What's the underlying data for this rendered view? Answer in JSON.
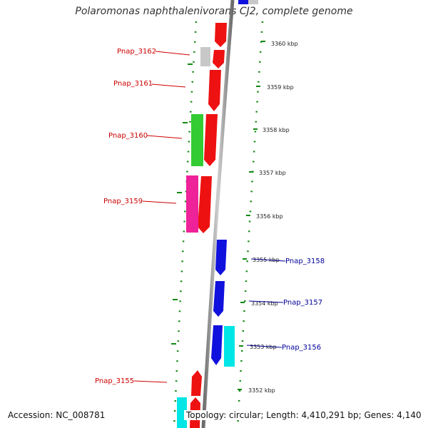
{
  "title": "Polaromonas naphthalenivorans CJ2, complete genome",
  "footer": {
    "accession": "Accession: NC_008781",
    "summary": "Topology: circular; Length: 4,410,291 bp; Genes: 4,140"
  },
  "colors": {
    "red": "#ee1111",
    "blue": "#1111dd",
    "green": "#33cc33",
    "magenta": "#ee2299",
    "cyan": "#00e5e5",
    "gray": "#c8c8c8",
    "backbone": "#8a8a8a",
    "dots": "#118811",
    "label_red": "#cc0000",
    "label_blue": "#000099"
  },
  "scale_ticks": [
    "3360 kbp",
    "3359 kbp",
    "3358 kbp",
    "3357 kbp",
    "3356 kbp",
    "3355 kbp",
    "3354 kbp",
    "3353 kbp",
    "3352 kbp"
  ],
  "left_labels": [
    "Pnap_3162",
    "Pnap_3161",
    "Pnap_3160",
    "Pnap_3159",
    "Pnap_3155"
  ],
  "right_labels": [
    "Pnap_3158",
    "Pnap_3157",
    "Pnap_3156"
  ]
}
